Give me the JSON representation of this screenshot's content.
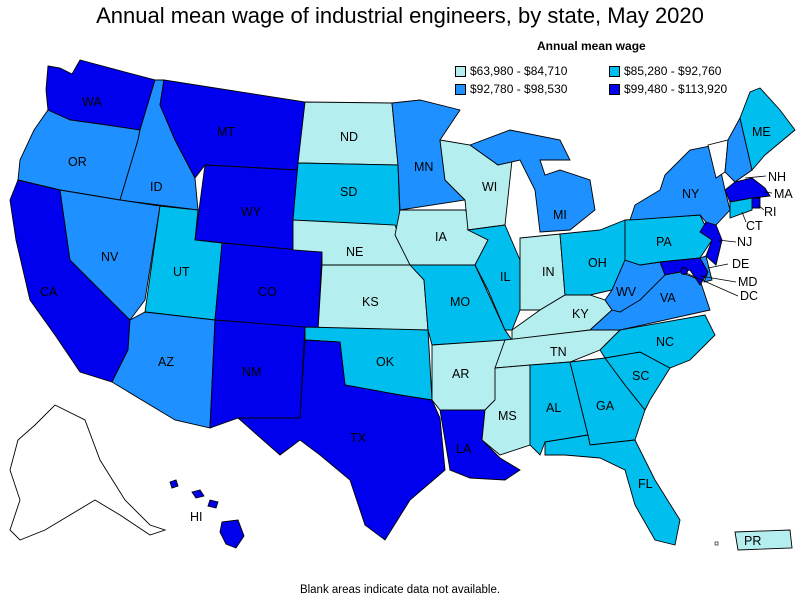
{
  "title": "Annual mean wage of industrial engineers, by state, May 2020",
  "legend": {
    "title": "Annual mean wage",
    "items": [
      {
        "label": "$63,980 - $84,710",
        "color": "#b4eeee"
      },
      {
        "label": "$85,280 - $92,760",
        "color": "#00bfef"
      },
      {
        "label": "$92,780 - $98,530",
        "color": "#1e90ff"
      },
      {
        "label": "$99,480 - $113,920",
        "color": "#0000ee"
      }
    ]
  },
  "footer": "Blank areas indicate data not available.",
  "tier_colors": {
    "t1": "#b4eeee",
    "t2": "#00bfef",
    "t3": "#1e90ff",
    "t4": "#0000ee",
    "blank": "#ffffff"
  },
  "states": {
    "WA": {
      "label": "WA",
      "tier": "t4"
    },
    "OR": {
      "label": "OR",
      "tier": "t3"
    },
    "CA": {
      "label": "CA",
      "tier": "t4"
    },
    "ID": {
      "label": "ID",
      "tier": "t3"
    },
    "NV": {
      "label": "NV",
      "tier": "t3"
    },
    "MT": {
      "label": "MT",
      "tier": "t4"
    },
    "WY": {
      "label": "WY",
      "tier": "t4"
    },
    "UT": {
      "label": "UT",
      "tier": "t2"
    },
    "AZ": {
      "label": "AZ",
      "tier": "t3"
    },
    "CO": {
      "label": "CO",
      "tier": "t4"
    },
    "NM": {
      "label": "NM",
      "tier": "t4"
    },
    "ND": {
      "label": "ND",
      "tier": "t1"
    },
    "SD": {
      "label": "SD",
      "tier": "t2"
    },
    "NE": {
      "label": "NE",
      "tier": "t1"
    },
    "KS": {
      "label": "KS",
      "tier": "t1"
    },
    "OK": {
      "label": "OK",
      "tier": "t2"
    },
    "TX": {
      "label": "TX",
      "tier": "t4"
    },
    "MN": {
      "label": "MN",
      "tier": "t3"
    },
    "IA": {
      "label": "IA",
      "tier": "t1"
    },
    "MO": {
      "label": "MO",
      "tier": "t2"
    },
    "AR": {
      "label": "AR",
      "tier": "t1"
    },
    "LA": {
      "label": "LA",
      "tier": "t4"
    },
    "WI": {
      "label": "WI",
      "tier": "t1"
    },
    "IL": {
      "label": "IL",
      "tier": "t2"
    },
    "MI": {
      "label": "MI",
      "tier": "t3"
    },
    "IN": {
      "label": "IN",
      "tier": "t1"
    },
    "OH": {
      "label": "OH",
      "tier": "t2"
    },
    "KY": {
      "label": "KY",
      "tier": "t1"
    },
    "TN": {
      "label": "TN",
      "tier": "t1"
    },
    "MS": {
      "label": "MS",
      "tier": "t1"
    },
    "AL": {
      "label": "AL",
      "tier": "t2"
    },
    "GA": {
      "label": "GA",
      "tier": "t2"
    },
    "FL": {
      "label": "FL",
      "tier": "t2"
    },
    "SC": {
      "label": "SC",
      "tier": "t2"
    },
    "NC": {
      "label": "NC",
      "tier": "t2"
    },
    "VA": {
      "label": "VA",
      "tier": "t3"
    },
    "WV": {
      "label": "WV",
      "tier": "t3"
    },
    "PA": {
      "label": "PA",
      "tier": "t2"
    },
    "NY": {
      "label": "NY",
      "tier": "t3"
    },
    "VT": {
      "label": "",
      "tier": "blank"
    },
    "NH": {
      "label": "NH",
      "tier": "t3"
    },
    "ME": {
      "label": "ME",
      "tier": "t2"
    },
    "MA": {
      "label": "MA",
      "tier": "t4"
    },
    "RI": {
      "label": "RI",
      "tier": "t4"
    },
    "CT": {
      "label": "CT",
      "tier": "t2"
    },
    "NJ": {
      "label": "NJ",
      "tier": "t4"
    },
    "DE": {
      "label": "DE",
      "tier": "t3"
    },
    "MD": {
      "label": "MD",
      "tier": "t4"
    },
    "DC": {
      "label": "DC",
      "tier": "t4"
    },
    "AK": {
      "label": "",
      "tier": "blank"
    },
    "HI": {
      "label": "HI",
      "tier": "t4"
    },
    "PR": {
      "label": "PR",
      "tier": "t1"
    }
  }
}
